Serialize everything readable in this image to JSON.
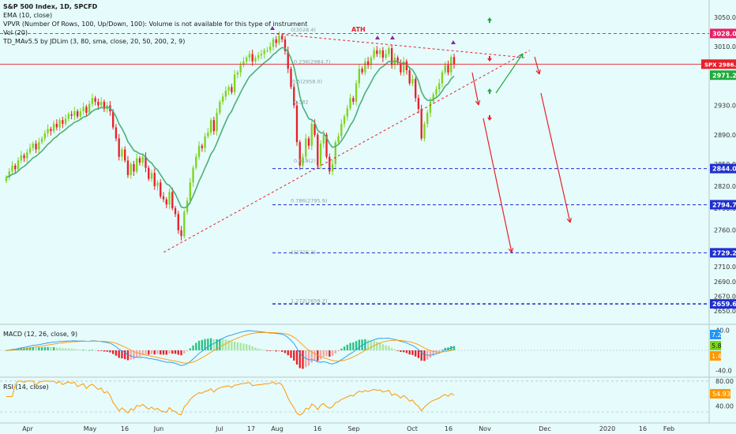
{
  "legend": {
    "title": "S&P 500 Index, 1D, SPCFD",
    "lines": [
      "EMA (10, close)",
      "VPVR (Number Of Rows, 100, Up/Down, 100): Volume is not available for this type of instrument",
      "Vol (20)",
      "TD_MAv5.5 by JDLim (3, 80, sma, close, 20, 50, 200, 2, 9)"
    ]
  },
  "colors": {
    "background": "#e6fbfb",
    "up_candle": "#7ed321",
    "down_candle": "#e8202a",
    "ema": "#4caf7a",
    "resistance": "#e8202a",
    "support": "#1f2fd1",
    "last_price": "#e8202a",
    "macd_line": "#2196f3",
    "signal_line": "#ff9800",
    "rsi_line": "#ff9800",
    "green_arrow": "#1faa3c",
    "red_arrow": "#e8202a",
    "ath_marker": "#8e24aa"
  },
  "annotations": {
    "ath": "ATH",
    "fib": [
      "0(3028.4)",
      "0.5(2958.0)",
      "0.786(2795.9)",
      "1(2725.3)",
      "1.272(2659.2)"
    ],
    "fib_partial": [
      "0.236(2984.7)",
      "0.382",
      "0.618(2)"
    ]
  },
  "chart_data": [
    {
      "type": "candlestick",
      "title": "S&P 500 Index, 1D, SPCFD",
      "ylim": [
        2635,
        3065
      ],
      "yticks": [
        3050,
        3010,
        2970,
        2930,
        2890,
        2850,
        2820,
        2790,
        2760,
        2730,
        2710,
        2690,
        2670,
        2650
      ],
      "xticks": [
        "Apr",
        "May",
        "16",
        "Jun",
        "Jul",
        "17",
        "Aug",
        "16",
        "Sep",
        "Oct",
        "16",
        "Nov",
        "Dec",
        "2020",
        "16",
        "Feb"
      ],
      "price_labels": [
        {
          "label": "3028.0",
          "value": 3028.0,
          "color": "#e91e63"
        },
        {
          "label": "SPX",
          "value": 2986.2,
          "color": "#e8202a",
          "extra": "2986.2"
        },
        {
          "label": "2971.2",
          "value": 2971.2,
          "color": "#1faa3c"
        },
        {
          "label": "2844.0",
          "value": 2844.0,
          "color": "#1f2fd1"
        },
        {
          "label": "2794.7",
          "value": 2794.7,
          "color": "#1f2fd1"
        },
        {
          "label": "2729.2",
          "value": 2729.2,
          "color": "#1f2fd1"
        },
        {
          "label": "2659.6",
          "value": 2659.6,
          "color": "#1f2fd1"
        }
      ],
      "closes": [
        2832,
        2840,
        2848,
        2843,
        2855,
        2862,
        2858,
        2866,
        2872,
        2878,
        2870,
        2880,
        2885,
        2892,
        2898,
        2895,
        2905,
        2900,
        2910,
        2905,
        2912,
        2918,
        2916,
        2922,
        2915,
        2922,
        2928,
        2920,
        2932,
        2940,
        2935,
        2930,
        2935,
        2925,
        2930,
        2922,
        2900,
        2885,
        2860,
        2870,
        2855,
        2835,
        2850,
        2840,
        2858,
        2852,
        2860,
        2845,
        2830,
        2838,
        2820,
        2825,
        2806,
        2802,
        2795,
        2812,
        2790,
        2782,
        2760,
        2752,
        2785,
        2800,
        2825,
        2845,
        2860,
        2875,
        2872,
        2888,
        2893,
        2910,
        2895,
        2920,
        2935,
        2942,
        2950,
        2955,
        2948,
        2972,
        2975,
        2985,
        2990,
        2995,
        3000,
        2990,
        2995,
        2998,
        3000,
        3005,
        3005,
        3010,
        3020,
        3015,
        3025,
        3020,
        3004,
        2980,
        2955,
        2930,
        2880,
        2848,
        2860,
        2885,
        2875,
        2905,
        2890,
        2848,
        2878,
        2890,
        2860,
        2840,
        2850,
        2880,
        2888,
        2905,
        2915,
        2926,
        2940,
        2935,
        2960,
        2980,
        2975,
        2990,
        2985,
        2995,
        3005,
        3000,
        3005,
        2995,
        3000,
        3008,
        2985,
        2995,
        2988,
        2975,
        2990,
        2978,
        2960,
        2966,
        2940,
        2925,
        2885,
        2905,
        2920,
        2935,
        2945,
        2952,
        2960,
        2975,
        2985,
        2975,
        2996,
        2986
      ],
      "ema_label": "EMA (10, close)",
      "trend_lines": [
        {
          "name": "ath-resistance",
          "points": [
            [
              "2019-07-26",
              3028
            ],
            [
              "2019-11-27",
              2995
            ]
          ]
        },
        {
          "name": "rising-support",
          "points": [
            [
              "2019-06-03",
              2730
            ],
            [
              "2019-11-29",
              3005
            ]
          ]
        }
      ],
      "horizontal_levels": [
        {
          "name": "ath-level",
          "value": 3028.0
        },
        {
          "name": "last-price",
          "value": 2986.2
        },
        {
          "name": "support-2844",
          "value": 2844.0
        },
        {
          "name": "support-2794",
          "value": 2794.7
        },
        {
          "name": "support-2729",
          "value": 2729.2
        },
        {
          "name": "support-2659",
          "value": 2659.6
        }
      ]
    },
    {
      "type": "histogram",
      "title": "MACD (12, 26, close, 9)",
      "ylim": [
        -50,
        50
      ],
      "yticks": [
        40.0,
        -40.0
      ],
      "value_labels": [
        {
          "label": "7.2",
          "color": "#2196f3"
        },
        {
          "label": "5.8",
          "color": "#7ed321"
        },
        {
          "label": "1.4",
          "color": "#ff9800"
        }
      ]
    },
    {
      "type": "line",
      "title": "RSI (14, close)",
      "ylim": [
        20,
        85
      ],
      "yticks": [
        80.0,
        40.0
      ],
      "value_labels": [
        {
          "label": "54.93",
          "color": "#ff9800"
        }
      ]
    }
  ]
}
